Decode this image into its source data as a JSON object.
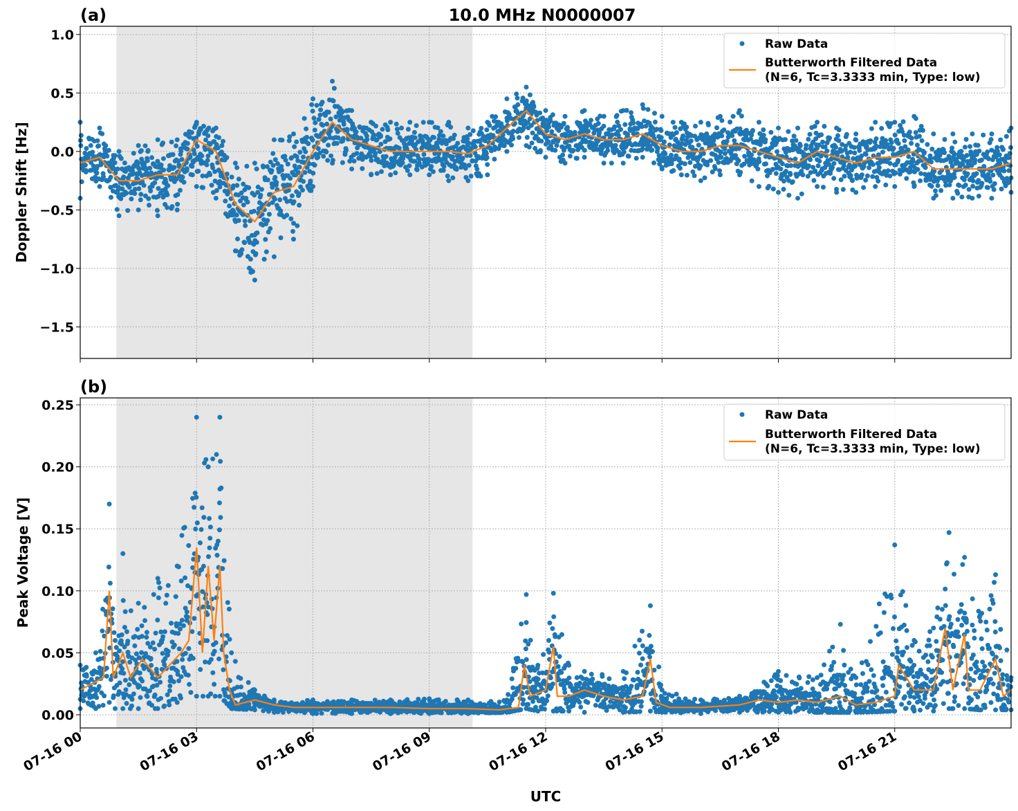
{
  "title": "10.0 MHz N0000007",
  "colors": {
    "raw": "#1f77b4",
    "filtered": "#ff7f0e",
    "shade": "#e6e6e6"
  },
  "chart_data": [
    {
      "type": "scatter+line",
      "panel_label": "(a)",
      "ylabel": "Doppler Shift [Hz]",
      "xlabel": "",
      "xlim_hours": [
        0,
        24
      ],
      "ylim": [
        -1.77,
        1.07
      ],
      "yticks": [
        1.0,
        0.5,
        0.0,
        -0.5,
        -1.0,
        -1.5
      ],
      "ytick_labels": [
        "1.0",
        "0.5",
        "0.0",
        "−0.5",
        "−1.0",
        "−1.5"
      ],
      "grid": true,
      "legend_position": "top-right",
      "shaded_interval_utc": [
        "07-16 00:56",
        "07-16 10:07"
      ],
      "series": [
        {
          "name": "Raw Data",
          "kind": "scatter",
          "t_hours": [
            0,
            0.5,
            1,
            1.5,
            2,
            2.5,
            3,
            3.5,
            4,
            4.5,
            5,
            5.5,
            6,
            6.5,
            7,
            7.5,
            8,
            8.5,
            9,
            9.5,
            10,
            10.5,
            11,
            11.5,
            12,
            12.5,
            13,
            13.5,
            14,
            14.5,
            15,
            15.5,
            16,
            16.5,
            17,
            17.5,
            18,
            18.5,
            19,
            19.5,
            20,
            20.5,
            21,
            21.5,
            22,
            22.5,
            23,
            23.5,
            24
          ],
          "low": [
            -0.4,
            -0.3,
            -0.55,
            -0.5,
            -0.55,
            -0.5,
            -0.3,
            -0.4,
            -0.85,
            -1.1,
            -0.9,
            -0.75,
            -0.3,
            -0.1,
            -0.15,
            -0.2,
            -0.2,
            -0.2,
            -0.2,
            -0.25,
            -0.25,
            -0.2,
            0.0,
            0.05,
            -0.05,
            -0.1,
            -0.05,
            -0.1,
            -0.1,
            -0.05,
            -0.15,
            -0.2,
            -0.25,
            -0.2,
            -0.2,
            -0.3,
            -0.35,
            -0.4,
            -0.3,
            -0.35,
            -0.35,
            -0.3,
            -0.3,
            -0.3,
            -0.4,
            -0.4,
            -0.4,
            -0.4,
            -0.35
          ],
          "high": [
            0.25,
            0.2,
            0.0,
            0.05,
            0.1,
            0.1,
            0.25,
            0.2,
            -0.1,
            -0.1,
            0.1,
            0.15,
            0.45,
            0.6,
            0.35,
            0.25,
            0.25,
            0.25,
            0.25,
            0.25,
            0.2,
            0.25,
            0.45,
            0.55,
            0.35,
            0.3,
            0.35,
            0.3,
            0.35,
            0.4,
            0.3,
            0.25,
            0.25,
            0.3,
            0.35,
            0.25,
            0.2,
            0.2,
            0.25,
            0.2,
            0.15,
            0.25,
            0.25,
            0.3,
            0.15,
            0.15,
            0.15,
            0.15,
            0.2
          ]
        },
        {
          "name": "Butterworth Filtered Data\n(N=6, Tc=3.3333 min, Type: low)",
          "kind": "line",
          "t_hours": [
            0,
            0.5,
            1,
            1.5,
            2,
            2.5,
            3,
            3.5,
            4,
            4.5,
            5,
            5.5,
            6,
            6.5,
            7,
            7.5,
            8,
            8.5,
            9,
            9.5,
            10,
            10.5,
            11,
            11.5,
            12,
            12.5,
            13,
            13.5,
            14,
            14.5,
            15,
            15.5,
            16,
            16.5,
            17,
            17.5,
            18,
            18.5,
            19,
            19.5,
            20,
            20.5,
            21,
            21.5,
            22,
            22.5,
            23,
            23.5,
            24
          ],
          "values": [
            -0.1,
            -0.05,
            -0.25,
            -0.25,
            -0.2,
            -0.2,
            0.1,
            0.0,
            -0.45,
            -0.6,
            -0.35,
            -0.3,
            0.0,
            0.25,
            0.1,
            0.05,
            0.0,
            0.0,
            0.0,
            0.0,
            -0.02,
            0.05,
            0.2,
            0.35,
            0.15,
            0.1,
            0.15,
            0.1,
            0.1,
            0.15,
            0.05,
            0.0,
            0.0,
            0.05,
            0.05,
            0.0,
            -0.05,
            -0.1,
            0.0,
            -0.05,
            -0.1,
            -0.05,
            -0.05,
            0.0,
            -0.15,
            -0.15,
            -0.15,
            -0.15,
            -0.1
          ]
        }
      ],
      "legend": {
        "raw_label": "Raw Data",
        "filtered_label_1": "Butterworth Filtered Data",
        "filtered_label_2": "(N=6, Tc=3.3333 min, Type: low)"
      }
    },
    {
      "type": "scatter+line",
      "panel_label": "(b)",
      "ylabel": "Peak Voltage [V]",
      "xlabel": "UTC",
      "xlim_hours": [
        0,
        24
      ],
      "ylim": [
        -0.0106,
        0.2556
      ],
      "yticks": [
        0.25,
        0.2,
        0.15,
        0.1,
        0.05,
        0.0
      ],
      "ytick_labels": [
        "0.25",
        "0.20",
        "0.15",
        "0.10",
        "0.05",
        "0.00"
      ],
      "xtick_labels": [
        "07-16 00",
        "07-16 03",
        "07-16 06",
        "07-16 09",
        "07-16 12",
        "07-16 15",
        "07-16 18",
        "07-16 21"
      ],
      "xtick_hours": [
        0,
        3,
        6,
        9,
        12,
        15,
        18,
        21
      ],
      "grid": true,
      "legend_position": "top-right",
      "shaded_interval_utc": [
        "07-16 00:56",
        "07-16 10:07"
      ],
      "series": [
        {
          "name": "Raw Data",
          "kind": "scatter",
          "t_hours": [
            0,
            0.4,
            0.75,
            0.9,
            1.1,
            1.5,
            2,
            2.5,
            3.0,
            3.3,
            3.6,
            3.9,
            4.5,
            5,
            6,
            7,
            8,
            9,
            10,
            11,
            11.5,
            11.8,
            12.2,
            12.6,
            13,
            14,
            14.7,
            15,
            16,
            17,
            18,
            19,
            19.6,
            20,
            21,
            21.5,
            22,
            22.4,
            22.8,
            23.2,
            23.6,
            24
          ],
          "low": [
            0.005,
            0.005,
            0.01,
            0.005,
            0.005,
            0.005,
            0.005,
            0.01,
            0.015,
            0.015,
            0.015,
            0.005,
            0.004,
            0.002,
            0.001,
            0.001,
            0.001,
            0.001,
            0.001,
            0.002,
            0.005,
            0.003,
            0.003,
            0.003,
            0.002,
            0.002,
            0.003,
            0.002,
            0.001,
            0.002,
            0.002,
            0.002,
            0.002,
            0.002,
            0.003,
            0.003,
            0.003,
            0.005,
            0.005,
            0.004,
            0.004,
            0.004
          ],
          "high": [
            0.04,
            0.05,
            0.17,
            0.06,
            0.13,
            0.09,
            0.11,
            0.12,
            0.24,
            0.2,
            0.24,
            0.05,
            0.02,
            0.012,
            0.012,
            0.012,
            0.012,
            0.013,
            0.012,
            0.012,
            0.097,
            0.04,
            0.098,
            0.04,
            0.035,
            0.035,
            0.088,
            0.02,
            0.012,
            0.015,
            0.035,
            0.03,
            0.073,
            0.03,
            0.137,
            0.06,
            0.07,
            0.147,
            0.127,
            0.08,
            0.113,
            0.03
          ]
        },
        {
          "name": "Butterworth Filtered Data\n(N=6, Tc=3.3333 min, Type: low)",
          "kind": "line",
          "t_hours": [
            0,
            0.3,
            0.6,
            0.75,
            0.85,
            1.1,
            1.3,
            1.6,
            2,
            2.3,
            2.6,
            2.8,
            3.0,
            3.15,
            3.3,
            3.45,
            3.6,
            3.7,
            3.85,
            4.0,
            4.5,
            5,
            5.5,
            6,
            7,
            8,
            9,
            10,
            10.8,
            11.3,
            11.45,
            11.6,
            12.0,
            12.2,
            12.3,
            12.6,
            13,
            13.5,
            14,
            14.5,
            14.7,
            14.85,
            15.2,
            16,
            17,
            17.5,
            18,
            18.5,
            19,
            19.6,
            20,
            20.5,
            21,
            21.1,
            21.5,
            22,
            22.3,
            22.5,
            22.8,
            22.9,
            23.2,
            23.6,
            23.8,
            24
          ],
          "values": [
            0.02,
            0.025,
            0.03,
            0.1,
            0.03,
            0.05,
            0.03,
            0.045,
            0.03,
            0.04,
            0.05,
            0.06,
            0.135,
            0.05,
            0.12,
            0.06,
            0.12,
            0.05,
            0.02,
            0.008,
            0.012,
            0.008,
            0.006,
            0.006,
            0.006,
            0.006,
            0.005,
            0.005,
            0.004,
            0.006,
            0.04,
            0.015,
            0.02,
            0.055,
            0.015,
            0.015,
            0.02,
            0.015,
            0.012,
            0.015,
            0.045,
            0.01,
            0.006,
            0.006,
            0.008,
            0.012,
            0.01,
            0.012,
            0.01,
            0.015,
            0.008,
            0.01,
            0.015,
            0.04,
            0.02,
            0.02,
            0.07,
            0.02,
            0.065,
            0.02,
            0.02,
            0.045,
            0.015,
            0.02
          ]
        }
      ],
      "legend": {
        "raw_label": "Raw Data",
        "filtered_label_1": "Butterworth Filtered Data",
        "filtered_label_2": "(N=6, Tc=3.3333 min, Type: low)"
      }
    }
  ]
}
